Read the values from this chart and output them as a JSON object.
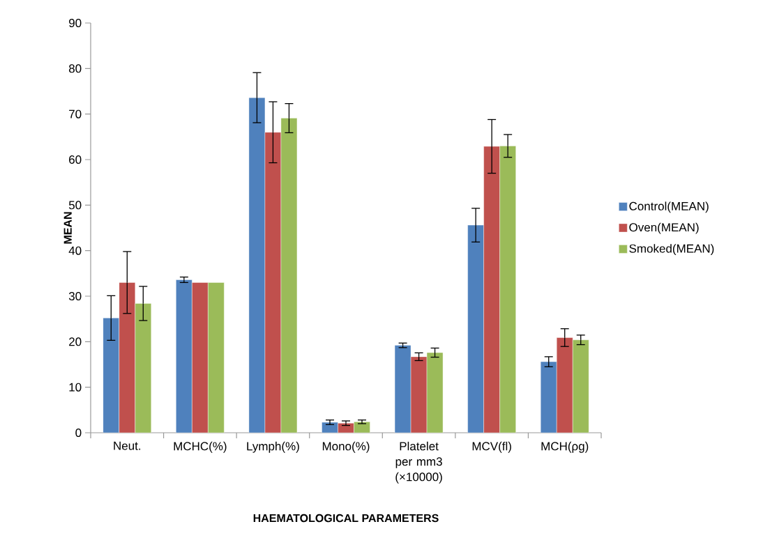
{
  "chart_data": {
    "type": "bar",
    "xlabel": "HAEMATOLOGICAL PARAMETERS",
    "ylabel": "MEAN",
    "categories": [
      "Neut.",
      "MCHC(%)",
      "Lymph(%)",
      "Mono(%)",
      "Platelet per mm3 (×10000)",
      "MCV(fl)",
      "MCH(ρg)"
    ],
    "series": [
      {
        "name": "Control(MEAN)",
        "color": "#4f81bd",
        "values": [
          25.2,
          33.6,
          73.6,
          2.3,
          19.2,
          45.6,
          15.6
        ],
        "errors": [
          4.9,
          0.6,
          5.5,
          0.5,
          0.5,
          3.7,
          1.1
        ]
      },
      {
        "name": "Oven(MEAN)",
        "color": "#c0504d",
        "values": [
          33.0,
          33.0,
          66.0,
          2.1,
          16.7,
          62.9,
          20.9
        ],
        "errors": [
          6.8,
          null,
          6.7,
          0.5,
          0.85,
          5.9,
          1.95
        ]
      },
      {
        "name": "Smoked(MEAN)",
        "color": "#9bbb59",
        "values": [
          28.4,
          33.0,
          69.1,
          2.4,
          17.6,
          63.0,
          20.4
        ],
        "errors": [
          3.75,
          null,
          3.2,
          0.4,
          1.0,
          2.5,
          1.05
        ]
      }
    ],
    "ylim": [
      0,
      90
    ],
    "yticks": [
      0,
      10,
      20,
      30,
      40,
      50,
      60,
      70,
      80,
      90
    ],
    "grid": false,
    "legend": "right"
  }
}
